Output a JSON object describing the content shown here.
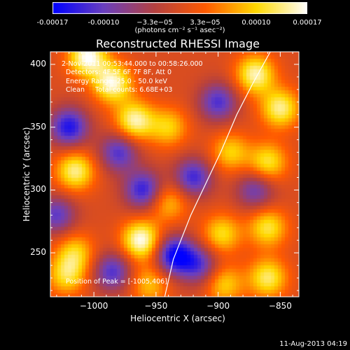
{
  "colorbar": {
    "tick_labels": [
      "-0.00017",
      "-0.00010",
      "−3.3e−05",
      "3.3e−05",
      "0.00010",
      "0.00017"
    ],
    "tick_values": [
      -0.00017,
      -0.0001,
      -3.3e-05,
      3.3e-05,
      0.0001,
      0.00017
    ],
    "range": [
      -0.00017,
      0.00017
    ],
    "units_label": "(photons cm⁻² s⁻¹ asec⁻²)"
  },
  "annotations": {
    "time_range": "2-Nov-2011 00:53:44.000 to 00:58:26.000",
    "detectors": "Detectors: 4F 5F 6F 7F 8F, Att 0",
    "energy_range": "Energy Range: 25.0 - 50.0 keV",
    "clean_line": "Clean     Total counts: 6.68E+03",
    "peak_position": "Position of Peak = [-1005,406]"
  },
  "timestamp": "11-Aug-2013 04:19",
  "chart_data": {
    "type": "heatmap",
    "title": "Reconstructed RHESSI Image",
    "xlabel": "Heliocentric X (arcsec)",
    "ylabel": "Heliocentric Y (arcsec)",
    "xlim": [
      -1035,
      -835
    ],
    "ylim": [
      215,
      410
    ],
    "x_ticks": [
      -1000,
      -950,
      -900,
      -850
    ],
    "x_tick_labels": [
      "−1000",
      "−950",
      "−900",
      "−850"
    ],
    "y_ticks": [
      250,
      300,
      350,
      400
    ],
    "y_tick_labels": [
      "250",
      "300",
      "350",
      "400"
    ],
    "colormap": [
      "#0000ff",
      "#6a3fbf",
      "#b44040",
      "#ff5a00",
      "#ffd800",
      "#ffffff"
    ],
    "value_range": [
      -0.00017,
      0.00017
    ],
    "grid": false,
    "limb_curve": {
      "x": [
        -943,
        -936,
        -922,
        -910,
        -898,
        -885,
        -872,
        -858
      ],
      "y": [
        215,
        245,
        280,
        305,
        330,
        360,
        385,
        410
      ]
    },
    "sources": [
      {
        "x": -1005,
        "y": 406,
        "value": 0.00017
      },
      {
        "x": -985,
        "y": 385,
        "value": 0.00016
      },
      {
        "x": -967,
        "y": 355,
        "value": 0.00015
      },
      {
        "x": -940,
        "y": 350,
        "value": 0.0001
      },
      {
        "x": -1015,
        "y": 315,
        "value": 0.00014
      },
      {
        "x": -962,
        "y": 260,
        "value": 0.00017
      },
      {
        "x": -940,
        "y": 290,
        "value": 9e-05
      },
      {
        "x": -1015,
        "y": 250,
        "value": 0.0001
      },
      {
        "x": -1022,
        "y": 232,
        "value": 0.00011
      },
      {
        "x": -955,
        "y": 225,
        "value": 9e-05
      },
      {
        "x": -870,
        "y": 392,
        "value": 0.00015
      },
      {
        "x": -850,
        "y": 365,
        "value": 0.00014
      },
      {
        "x": -890,
        "y": 330,
        "value": 0.0001
      },
      {
        "x": -860,
        "y": 322,
        "value": 0.00012
      },
      {
        "x": -897,
        "y": 265,
        "value": 0.00011
      },
      {
        "x": -860,
        "y": 270,
        "value": 0.00012
      },
      {
        "x": -860,
        "y": 230,
        "value": 0.00013
      },
      {
        "x": -895,
        "y": 225,
        "value": 0.0001
      },
      {
        "x": -1020,
        "y": 350,
        "value": -0.00015
      },
      {
        "x": -980,
        "y": 330,
        "value": -0.00012
      },
      {
        "x": -935,
        "y": 248,
        "value": -0.00017
      },
      {
        "x": -960,
        "y": 300,
        "value": -0.00014
      },
      {
        "x": -920,
        "y": 310,
        "value": -0.00013
      },
      {
        "x": -900,
        "y": 370,
        "value": -0.00012
      },
      {
        "x": -985,
        "y": 235,
        "value": -0.00012
      },
      {
        "x": -1030,
        "y": 280,
        "value": -0.00011
      },
      {
        "x": -870,
        "y": 300,
        "value": -0.0001
      },
      {
        "x": -915,
        "y": 240,
        "value": -0.00011
      }
    ]
  }
}
